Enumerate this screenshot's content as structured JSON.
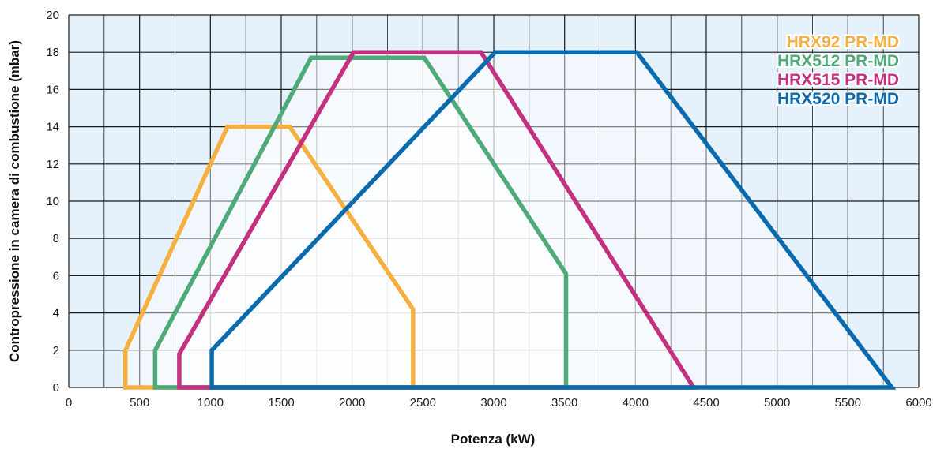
{
  "chart_data": {
    "type": "area",
    "title": "",
    "xlabel": "Potenza (kW)",
    "ylabel": "Contropressione in camera di combustione (mbar)",
    "xlim": [
      0,
      6000
    ],
    "ylim": [
      0,
      20
    ],
    "xticks": [
      0,
      500,
      1000,
      1500,
      2000,
      2500,
      3000,
      3500,
      4000,
      4500,
      5000,
      5500,
      6000
    ],
    "yticks": [
      0,
      2,
      4,
      6,
      8,
      10,
      12,
      14,
      16,
      18,
      20
    ],
    "grid": true,
    "legend_position": "top-right",
    "series": [
      {
        "name": "HRX92 PR-MD",
        "color": "#F5B041",
        "points": [
          [
            400,
            0
          ],
          [
            400,
            2
          ],
          [
            1120,
            14
          ],
          [
            1560,
            14
          ],
          [
            2430,
            4.2
          ],
          [
            2430,
            0
          ]
        ]
      },
      {
        "name": "HRX512 PR-MD",
        "color": "#4FAA7A",
        "points": [
          [
            610,
            0
          ],
          [
            610,
            2
          ],
          [
            1710,
            17.7
          ],
          [
            2510,
            17.7
          ],
          [
            3510,
            6.1
          ],
          [
            3510,
            0
          ]
        ]
      },
      {
        "name": "HRX515 PR-MD",
        "color": "#C2307F",
        "points": [
          [
            780,
            0
          ],
          [
            780,
            1.8
          ],
          [
            2010,
            18
          ],
          [
            2910,
            18
          ],
          [
            4410,
            0
          ]
        ]
      },
      {
        "name": "HRX520 PR-MD",
        "color": "#0A6AAE",
        "points": [
          [
            1010,
            0
          ],
          [
            1010,
            2
          ],
          [
            3010,
            18
          ],
          [
            4010,
            18
          ],
          [
            5810,
            0
          ]
        ]
      }
    ]
  }
}
